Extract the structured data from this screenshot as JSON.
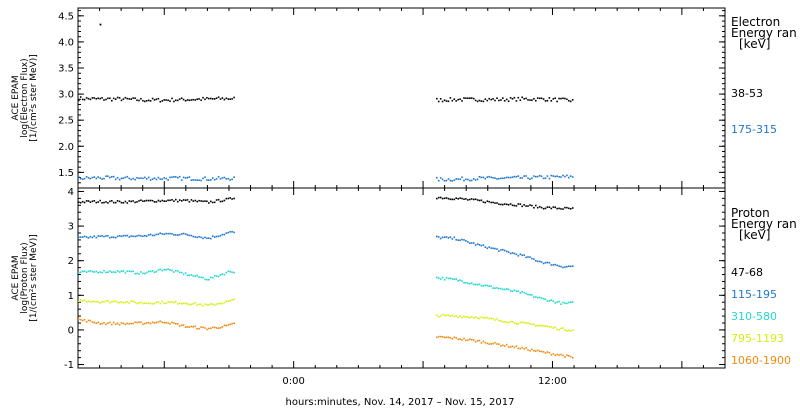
{
  "xlabel": "hours:minutes, Nov. 14, 2017 – Nov. 15, 2017",
  "x_ticks": [
    {
      "hour": 0,
      "label": "0:00"
    },
    {
      "hour": 12,
      "label": "12:00"
    }
  ],
  "chart_data": [
    {
      "type": "scatter",
      "panel": "electron",
      "ylabel_lines": [
        "ACE EPAM",
        "log(Electron Flux)",
        "[1/(cm²s ster MeV)]"
      ],
      "ylim": [
        1.2,
        4.65
      ],
      "yticks": [
        1.5,
        2.0,
        2.5,
        3.0,
        3.5,
        4.0,
        4.5
      ],
      "ytick_labels": [
        "1.5",
        "2.0",
        "2.5",
        "3.0",
        "3.5",
        "4.0",
        "4.5"
      ],
      "xlim_hours": [
        -10,
        20
      ],
      "legend_title_lines": [
        "Electron",
        "Energy ran",
        "[keV]"
      ],
      "outliers": [
        {
          "x": -9.0,
          "y": 4.35
        }
      ],
      "series": [
        {
          "name": "38-53",
          "color": "#000000",
          "segments": [
            {
              "x": [
                -10.0,
                -9.0,
                -8.0,
                -7.0,
                -6.0,
                -5.0,
                -4.0,
                -3.0,
                -2.8
              ],
              "y": [
                2.93,
                2.92,
                2.92,
                2.9,
                2.9,
                2.91,
                2.92,
                2.93,
                2.93
              ]
            },
            {
              "x": [
                6.6,
                7.5,
                8.5,
                9.5,
                10.5,
                11.5,
                12.5,
                12.9
              ],
              "y": [
                2.9,
                2.91,
                2.91,
                2.91,
                2.92,
                2.92,
                2.9,
                2.89
              ]
            }
          ]
        },
        {
          "name": "175-315",
          "color": "#1f77d0",
          "segments": [
            {
              "x": [
                -10.0,
                -9.0,
                -8.0,
                -7.0,
                -6.0,
                -5.0,
                -4.0,
                -3.0,
                -2.8
              ],
              "y": [
                1.4,
                1.41,
                1.4,
                1.4,
                1.4,
                1.4,
                1.39,
                1.4,
                1.4
              ]
            },
            {
              "x": [
                6.6,
                7.5,
                8.5,
                9.5,
                10.5,
                11.5,
                12.5,
                12.9
              ],
              "y": [
                1.38,
                1.38,
                1.4,
                1.4,
                1.41,
                1.42,
                1.43,
                1.43
              ]
            }
          ]
        }
      ]
    },
    {
      "type": "scatter",
      "panel": "proton",
      "ylabel_lines": [
        "ACE EPAM",
        "log(Proton Flux)",
        "[1/(cm²s ster MeV)]"
      ],
      "ylim": [
        -1.1,
        4.1
      ],
      "yticks": [
        -1,
        0,
        1,
        2,
        3,
        4
      ],
      "ytick_labels": [
        "-1",
        "0",
        "1",
        "2",
        "3",
        "4"
      ],
      "xlim_hours": [
        -10,
        20
      ],
      "legend_title_lines": [
        "Proton",
        "Energy ran",
        "[keV]"
      ],
      "series": [
        {
          "name": "47-68",
          "color": "#000000",
          "segments": [
            {
              "x": [
                -10.0,
                -9.0,
                -8.0,
                -7.0,
                -6.0,
                -5.0,
                -4.0,
                -3.0,
                -2.8
              ],
              "y": [
                3.72,
                3.73,
                3.72,
                3.74,
                3.76,
                3.76,
                3.71,
                3.8,
                3.84
              ]
            },
            {
              "x": [
                6.6,
                7.5,
                8.5,
                9.5,
                10.5,
                11.5,
                12.5,
                12.9
              ],
              "y": [
                3.85,
                3.82,
                3.76,
                3.68,
                3.63,
                3.56,
                3.53,
                3.52
              ]
            }
          ]
        },
        {
          "name": "115-195",
          "color": "#1f77d0",
          "segments": [
            {
              "x": [
                -10.0,
                -9.0,
                -8.0,
                -7.0,
                -6.0,
                -5.0,
                -4.0,
                -3.0,
                -2.8
              ],
              "y": [
                2.68,
                2.72,
                2.72,
                2.74,
                2.8,
                2.78,
                2.67,
                2.84,
                2.84
              ]
            },
            {
              "x": [
                6.6,
                7.5,
                8.5,
                9.5,
                10.5,
                11.5,
                12.5,
                12.9
              ],
              "y": [
                2.7,
                2.66,
                2.48,
                2.33,
                2.18,
                1.98,
                1.85,
                1.86
              ]
            }
          ]
        },
        {
          "name": "310-580",
          "color": "#20d8d0",
          "segments": [
            {
              "x": [
                -10.0,
                -9.0,
                -8.0,
                -7.0,
                -6.0,
                -5.0,
                -4.0,
                -3.0,
                -2.8
              ],
              "y": [
                1.68,
                1.71,
                1.71,
                1.66,
                1.78,
                1.63,
                1.49,
                1.71,
                1.71
              ]
            },
            {
              "x": [
                6.6,
                7.5,
                8.5,
                9.5,
                10.5,
                11.5,
                12.5,
                12.9
              ],
              "y": [
                1.53,
                1.47,
                1.34,
                1.22,
                1.1,
                0.92,
                0.78,
                0.8
              ]
            }
          ]
        },
        {
          "name": "795-1193",
          "color": "#d4ee10",
          "segments": [
            {
              "x": [
                -10.0,
                -9.0,
                -8.0,
                -7.0,
                -6.0,
                -5.0,
                -4.0,
                -3.0,
                -2.8
              ],
              "y": [
                0.88,
                0.84,
                0.84,
                0.8,
                0.82,
                0.8,
                0.73,
                0.85,
                0.88
              ]
            },
            {
              "x": [
                6.6,
                7.5,
                8.5,
                9.5,
                10.5,
                11.5,
                12.5,
                12.9
              ],
              "y": [
                0.44,
                0.42,
                0.39,
                0.3,
                0.22,
                0.14,
                0.04,
                0.02
              ]
            }
          ]
        },
        {
          "name": "1060-1900",
          "color": "#ee8a10",
          "segments": [
            {
              "x": [
                -10.0,
                -9.0,
                -8.0,
                -7.0,
                -6.0,
                -5.0,
                -4.0,
                -3.0,
                -2.8
              ],
              "y": [
                0.32,
                0.22,
                0.2,
                0.22,
                0.26,
                0.12,
                0.06,
                0.15,
                0.2
              ]
            },
            {
              "x": [
                6.6,
                7.5,
                8.5,
                9.5,
                10.5,
                11.5,
                12.5,
                12.9
              ],
              "y": [
                -0.18,
                -0.22,
                -0.3,
                -0.4,
                -0.5,
                -0.62,
                -0.72,
                -0.78
              ]
            }
          ]
        }
      ]
    }
  ]
}
